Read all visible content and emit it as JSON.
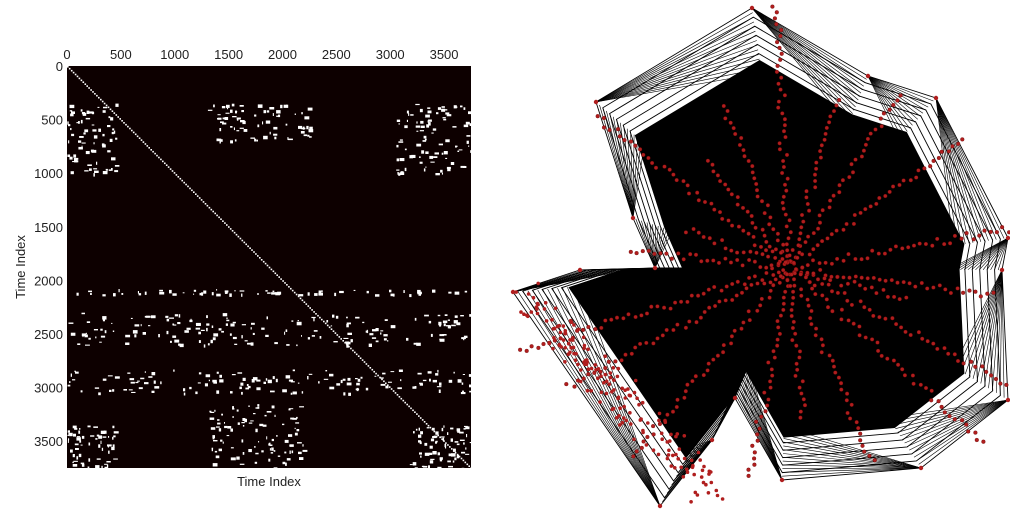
{
  "chart_data": [
    {
      "type": "heatmap",
      "title": "",
      "xlabel": "Time Index",
      "ylabel": "Time Index",
      "xlim": [
        0,
        3750
      ],
      "ylim": [
        3750,
        0
      ],
      "x_ticks": [
        "0",
        "500",
        "1000",
        "1500",
        "2000",
        "2500",
        "3000",
        "3500"
      ],
      "y_ticks": [
        "0",
        "500",
        "1000",
        "1500",
        "2000",
        "2500",
        "3000",
        "3500"
      ],
      "tick_values": [
        0,
        500,
        1000,
        1500,
        2000,
        2500,
        3000,
        3500
      ],
      "x_axis_position": "top",
      "background_color": "#0d0000",
      "mark_color": "#ffffff",
      "grid": false,
      "recurrence_bands": [
        {
          "x": [
            0,
            3750
          ],
          "y": [
            2080,
            2130
          ]
        },
        {
          "x": [
            0,
            3750
          ],
          "y": [
            2830,
            3050
          ]
        },
        {
          "x": [
            1300,
            2250
          ],
          "y": [
            350,
            700
          ]
        },
        {
          "x": [
            0,
            450
          ],
          "y": [
            350,
            1000
          ]
        },
        {
          "x": [
            3050,
            3750
          ],
          "y": [
            350,
            1000
          ]
        },
        {
          "x": [
            0,
            3750
          ],
          "y": [
            2300,
            2600
          ]
        },
        {
          "x": [
            0,
            450
          ],
          "y": [
            3350,
            3750
          ]
        },
        {
          "x": [
            3150,
            3750
          ],
          "y": [
            3350,
            3750
          ]
        },
        {
          "x": [
            1300,
            2200
          ],
          "y": [
            3150,
            3750
          ]
        }
      ]
    },
    {
      "type": "network",
      "title": "",
      "node_color": "#b01e1e",
      "edge_color": "#000000",
      "background_color": "#ffffff"
    }
  ]
}
